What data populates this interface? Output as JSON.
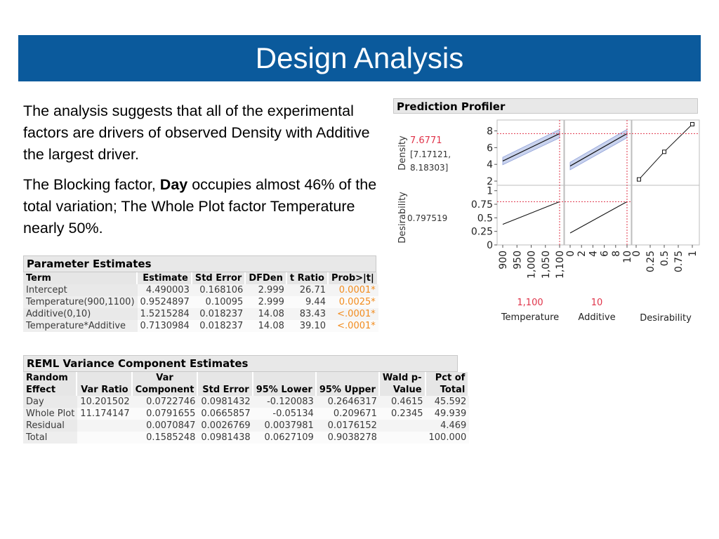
{
  "slide": {
    "title": "Design Analysis",
    "para1": "The analysis suggests that all of the experimental factors are drivers of observed Density with Additive the largest driver.",
    "para2_pre": "The Blocking factor, ",
    "para2_bold": "Day",
    "para2_post": " occupies almost 46% of the total variation;  The Whole Plot factor Temperature nearly 50%."
  },
  "param": {
    "header": "Parameter Estimates",
    "columns": [
      "Term",
      "Estimate",
      "Std Error",
      "DFDen",
      "t Ratio",
      "Prob>|t|"
    ],
    "rows": [
      {
        "term": "Intercept",
        "estimate": "4.490003",
        "se": "0.168106",
        "dfden": "2.999",
        "t": "26.71",
        "p": "0.0001*"
      },
      {
        "term": "Temperature(900,1100)",
        "estimate": "0.9524897",
        "se": "0.10095",
        "dfden": "2.999",
        "t": "9.44",
        "p": "0.0025*"
      },
      {
        "term": "Additive(0,10)",
        "estimate": "1.5215284",
        "se": "0.018237",
        "dfden": "14.08",
        "t": "83.43",
        "p": "<.0001*"
      },
      {
        "term": "Temperature*Additive",
        "estimate": "0.7130984",
        "se": "0.018237",
        "dfden": "14.08",
        "t": "39.10",
        "p": "<.0001*"
      }
    ],
    "p_color": "#f28c1e"
  },
  "reml": {
    "header": "REML Variance Component Estimates",
    "columns_top": [
      "Random",
      "",
      "Var",
      "",
      "",
      "",
      "Wald p-",
      "Pct of"
    ],
    "columns_bottom": [
      "Effect",
      "Var Ratio",
      "Component",
      "Std Error",
      "95% Lower",
      "95% Upper",
      "Value",
      "Total"
    ],
    "rows": [
      {
        "effect": "Day",
        "ratio": "10.201502",
        "comp": "0.0722746",
        "se": "0.0981432",
        "lower": "-0.120083",
        "upper": "0.2646317",
        "wald": "0.4615",
        "pct": "45.592"
      },
      {
        "effect": "Whole Plot",
        "ratio": "11.174147",
        "comp": "0.0791655",
        "se": "0.0665857",
        "lower": "-0.05134",
        "upper": "0.209671",
        "wald": "0.2345",
        "pct": "49.939"
      },
      {
        "effect": "Residual",
        "ratio": "",
        "comp": "0.0070847",
        "se": "0.0026769",
        "lower": "0.0037981",
        "upper": "0.0176152",
        "wald": "",
        "pct": "4.469"
      },
      {
        "effect": "Total",
        "ratio": "",
        "comp": "0.1585248",
        "se": "0.0981438",
        "lower": "0.0627109",
        "upper": "0.9038278",
        "wald": "",
        "pct": "100.000"
      }
    ]
  },
  "profiler": {
    "header": "Prediction Profiler",
    "density_label": "Density",
    "desirability_label": "Desirability",
    "density_value": "7.6771",
    "density_ci_low": "[7.17121,",
    "density_ci_high": "8.18303]",
    "desirability_value": "0.797519",
    "temperature_label": "Temperature",
    "additive_label": "Additive",
    "desirability_x_label": "Desirability",
    "temperature_value": "1,100",
    "additive_value": "10",
    "value_color": "#e0344a",
    "density_ticks": [
      "8",
      "6",
      "4",
      "2"
    ],
    "desir_ticks": [
      "1",
      "0.75",
      "0.5",
      "0.25",
      "0"
    ],
    "temp_ticks": [
      "900",
      "950",
      "1,000",
      "1,050",
      "1,100"
    ],
    "additive_ticks": [
      "0",
      "2",
      "4",
      "6",
      "8",
      "10"
    ],
    "desirx_ticks": [
      "0",
      "0.25",
      "0.5",
      "0.75",
      "1"
    ]
  },
  "chart_data": {
    "type": "line",
    "title": "Prediction Profiler",
    "series": [
      {
        "name": "Density",
        "x_factor": "Temperature",
        "x": [
          900,
          1100
        ],
        "y": [
          4.4,
          7.6771
        ]
      },
      {
        "name": "Density",
        "x_factor": "Additive",
        "x": [
          0,
          10
        ],
        "y": [
          3.8,
          7.6771
        ]
      },
      {
        "name": "Desirability",
        "x_factor": "Temperature",
        "x": [
          900,
          1100
        ],
        "y": [
          0.38,
          0.797519
        ]
      },
      {
        "name": "Desirability",
        "x_factor": "Additive",
        "x": [
          0,
          10
        ],
        "y": [
          0.22,
          0.797519
        ]
      },
      {
        "name": "Desirability",
        "x_factor": "Desirability",
        "x": [
          0.05,
          0.5,
          1.0
        ],
        "y": [
          2.2,
          5.5,
          8.8
        ]
      }
    ],
    "density_ylim": [
      1.5,
      9.3
    ],
    "desirability_ylim": [
      0,
      1.1
    ]
  }
}
